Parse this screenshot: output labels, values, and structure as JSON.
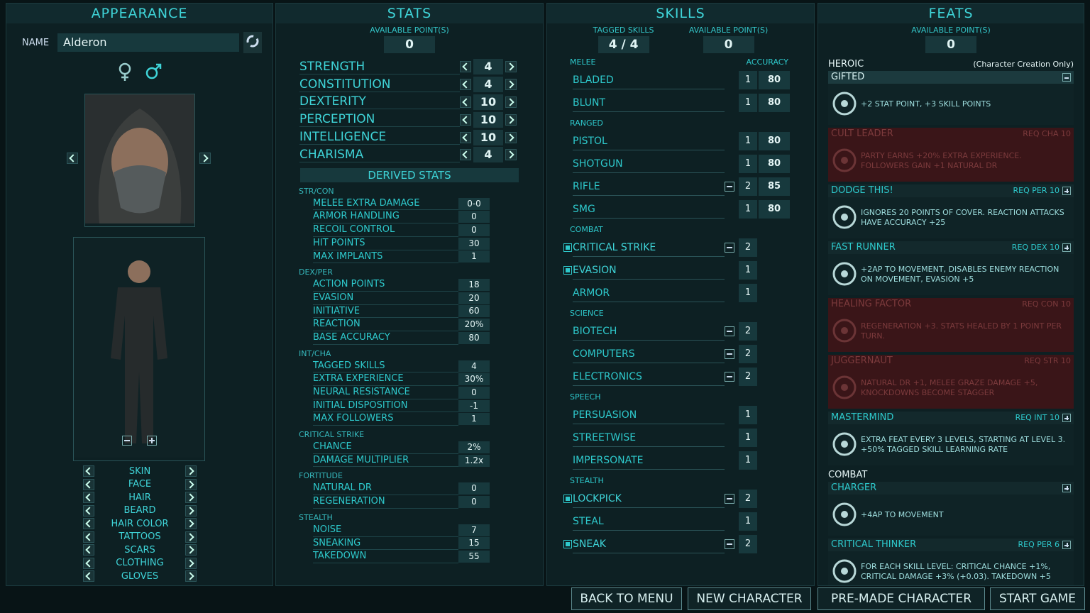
{
  "appearance": {
    "title": "APPEARANCE",
    "name_label": "NAME",
    "name": "Alderon",
    "options": [
      "SKIN",
      "FACE",
      "HAIR",
      "BEARD",
      "HAIR COLOR",
      "TATTOOS",
      "SCARS",
      "CLOTHING",
      "GLOVES"
    ]
  },
  "stats": {
    "title": "STATS",
    "available_label": "AVAILABLE POINT(S)",
    "available": "0",
    "attributes": [
      {
        "name": "STRENGTH",
        "value": "4"
      },
      {
        "name": "CONSTITUTION",
        "value": "4"
      },
      {
        "name": "DEXTERITY",
        "value": "10"
      },
      {
        "name": "PERCEPTION",
        "value": "10"
      },
      {
        "name": "INTELLIGENCE",
        "value": "10"
      },
      {
        "name": "CHARISMA",
        "value": "4"
      }
    ],
    "derived_title": "DERIVED STATS",
    "groups": [
      {
        "name": "STR/CON",
        "rows": [
          [
            "MELEE EXTRA DAMAGE",
            "0-0"
          ],
          [
            "ARMOR HANDLING",
            "0"
          ],
          [
            "RECOIL CONTROL",
            "0"
          ],
          [
            "HIT POINTS",
            "30"
          ],
          [
            "MAX IMPLANTS",
            "1"
          ]
        ]
      },
      {
        "name": "DEX/PER",
        "rows": [
          [
            "ACTION POINTS",
            "18"
          ],
          [
            "EVASION",
            "20"
          ],
          [
            "INITIATIVE",
            "60"
          ],
          [
            "REACTION",
            "20%"
          ],
          [
            "BASE ACCURACY",
            "80"
          ]
        ]
      },
      {
        "name": "INT/CHA",
        "rows": [
          [
            "TAGGED SKILLS",
            "4"
          ],
          [
            "EXTRA EXPERIENCE",
            "30%"
          ],
          [
            "NEURAL RESISTANCE",
            "0"
          ],
          [
            "INITIAL DISPOSITION",
            "-1"
          ],
          [
            "MAX FOLLOWERS",
            "1"
          ]
        ]
      },
      {
        "name": "CRITICAL STRIKE",
        "rows": [
          [
            "CHANCE",
            "2%"
          ],
          [
            "DAMAGE MULTIPLIER",
            "1.2x"
          ]
        ]
      },
      {
        "name": "FORTITUDE",
        "rows": [
          [
            "NATURAL DR",
            "0"
          ],
          [
            "REGENERATION",
            "0"
          ]
        ]
      },
      {
        "name": "STEALTH",
        "rows": [
          [
            "NOISE",
            "7"
          ],
          [
            "SNEAKING",
            "15"
          ],
          [
            "TAKEDOWN",
            "55"
          ]
        ]
      }
    ]
  },
  "skills": {
    "title": "SKILLS",
    "tagged_label": "TAGGED SKILLS",
    "tagged": "4 / 4",
    "available_label": "AVAILABLE POINT(S)",
    "available": "0",
    "accuracy_label": "ACCURACY",
    "groups": [
      {
        "name": "MELEE",
        "items": [
          {
            "name": "BLADED",
            "level": "1",
            "accuracy": "80",
            "tagged": false,
            "minus": false
          },
          {
            "name": "BLUNT",
            "level": "1",
            "accuracy": "80",
            "tagged": false,
            "minus": false
          }
        ]
      },
      {
        "name": "RANGED",
        "items": [
          {
            "name": "PISTOL",
            "level": "1",
            "accuracy": "80",
            "tagged": false,
            "minus": false
          },
          {
            "name": "SHOTGUN",
            "level": "1",
            "accuracy": "80",
            "tagged": false,
            "minus": false
          },
          {
            "name": "RIFLE",
            "level": "2",
            "accuracy": "85",
            "tagged": false,
            "minus": true
          },
          {
            "name": "SMG",
            "level": "1",
            "accuracy": "80",
            "tagged": false,
            "minus": false
          }
        ]
      },
      {
        "name": "COMBAT",
        "items": [
          {
            "name": "CRITICAL STRIKE",
            "level": "2",
            "tagged": true,
            "minus": true
          },
          {
            "name": "EVASION",
            "level": "1",
            "tagged": true,
            "minus": false
          },
          {
            "name": "ARMOR",
            "level": "1",
            "tagged": false,
            "minus": false
          }
        ]
      },
      {
        "name": "SCIENCE",
        "items": [
          {
            "name": "BIOTECH",
            "level": "2",
            "tagged": false,
            "minus": true
          },
          {
            "name": "COMPUTERS",
            "level": "2",
            "tagged": false,
            "minus": true
          },
          {
            "name": "ELECTRONICS",
            "level": "2",
            "tagged": false,
            "minus": true
          }
        ]
      },
      {
        "name": "SPEECH",
        "items": [
          {
            "name": "PERSUASION",
            "level": "1",
            "tagged": false,
            "minus": false
          },
          {
            "name": "STREETWISE",
            "level": "1",
            "tagged": false,
            "minus": false
          },
          {
            "name": "IMPERSONATE",
            "level": "1",
            "tagged": false,
            "minus": false
          }
        ]
      },
      {
        "name": "STEALTH",
        "items": [
          {
            "name": "LOCKPICK",
            "level": "2",
            "tagged": true,
            "minus": true
          },
          {
            "name": "STEAL",
            "level": "1",
            "tagged": false,
            "minus": false
          },
          {
            "name": "SNEAK",
            "level": "2",
            "tagged": true,
            "minus": true
          }
        ]
      }
    ]
  },
  "feats": {
    "title": "FEATS",
    "available_label": "AVAILABLE POINT(S)",
    "available": "0",
    "groups": [
      {
        "name": "HEROIC",
        "note": "(Character Creation Only)",
        "items": [
          {
            "name": "GIFTED",
            "desc": "+2 STAT POINT, +3 SKILL POINTS",
            "state": "selected"
          },
          {
            "name": "CULT LEADER",
            "req": "REQ CHA 10",
            "desc": "PARTY EARNS +20% EXTRA EXPERIENCE. FOLLOWERS GAIN +1 NATURAL DR",
            "state": "locked"
          },
          {
            "name": "DODGE THIS!",
            "req": "REQ PER 10",
            "desc": "IGNORES 20 POINTS OF COVER. REACTION ATTACKS HAVE ACCURACY +25",
            "state": "available"
          },
          {
            "name": "FAST RUNNER",
            "req": "REQ DEX 10",
            "desc": "+2AP TO MOVEMENT, DISABLES ENEMY REACTION ON MOVEMENT, EVASION +5",
            "state": "available"
          },
          {
            "name": "HEALING FACTOR",
            "req": "REQ CON 10",
            "desc": "REGENERATION +3. STATS HEALED BY 1 POINT PER TURN.",
            "state": "locked"
          },
          {
            "name": "JUGGERNAUT",
            "req": "REQ STR 10",
            "desc": "NATURAL DR +1, MELEE GRAZE DAMAGE +5, KNOCKDOWNS BECOME STAGGER",
            "state": "locked"
          },
          {
            "name": "MASTERMIND",
            "req": "REQ INT 10",
            "desc": "EXTRA FEAT EVERY 3 LEVELS, STARTING AT LEVEL 3. +50% TAGGED SKILL LEARNING RATE",
            "state": "available"
          }
        ]
      },
      {
        "name": "COMBAT",
        "items": [
          {
            "name": "CHARGER",
            "desc": "+4AP TO MOVEMENT",
            "state": "available"
          },
          {
            "name": "CRITICAL THINKER",
            "req": "REQ PER 6",
            "desc": "FOR EACH SKILL LEVEL: CRITICAL CHANCE +1%, CRITICAL DAMAGE +3% (+0.03). TAKEDOWN +5",
            "state": "available"
          }
        ]
      }
    ]
  },
  "buttons": [
    "BACK TO MENU",
    "NEW CHARACTER",
    "PRE-MADE CHARACTER",
    "START GAME"
  ]
}
